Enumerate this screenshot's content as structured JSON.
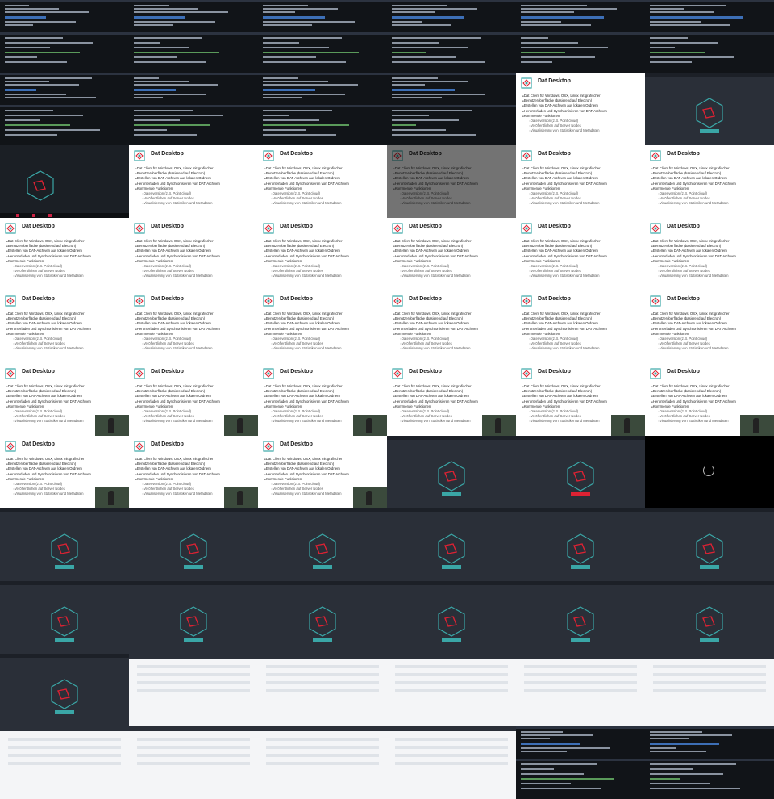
{
  "slide": {
    "title": "Dat Desktop",
    "items": [
      {
        "text": "Dat Client für Windows, OSX, Linux mit grafischer",
        "sub": false
      },
      {
        "text": "Benutzeroberfläche (basierend auf Electron)",
        "sub": false
      },
      {
        "text": "Erstellen von DAT-Archiven aus lokalen Ordnern",
        "sub": false
      },
      {
        "text": "Herunterladen und Synchronisieren von DAT-Archiven",
        "sub": false
      },
      {
        "text": "Kommende Funktionen",
        "sub": false
      },
      {
        "text": "Datenversion (z.B. Point cloud)",
        "sub": true
      },
      {
        "text": "Veröffentlichen auf Server Nodes",
        "sub": true
      },
      {
        "text": "Visualisierung von Statistiken und Metadaten",
        "sub": true
      }
    ]
  },
  "colors": {
    "teal": "#3aa6a6",
    "red": "#dd2233",
    "slate": "#2a2f38"
  },
  "tiles": [
    "terminal",
    "terminal",
    "terminal",
    "terminal",
    "terminal",
    "terminal",
    "terminal",
    "terminal",
    "terminal",
    "terminal",
    "slide",
    "app",
    "screen",
    "slide",
    "slide",
    "slide-dim",
    "slide",
    "slide",
    "slide",
    "slide",
    "slide",
    "slide",
    "slide",
    "slide",
    "slide",
    "slide",
    "slide",
    "slide",
    "slide",
    "slide",
    "slide-cam",
    "slide-cam",
    "slide-cam",
    "slide-cam",
    "slide-cam",
    "slide-cam",
    "slide-cam",
    "slide-cam",
    "slide-cam",
    "app",
    "app-red",
    "black",
    "app",
    "app",
    "app",
    "app",
    "app",
    "app",
    "app",
    "app",
    "app",
    "app",
    "app",
    "app",
    "app",
    "list",
    "list",
    "list",
    "list",
    "list",
    "list",
    "list",
    "list",
    "list",
    "terminal",
    "terminal"
  ]
}
